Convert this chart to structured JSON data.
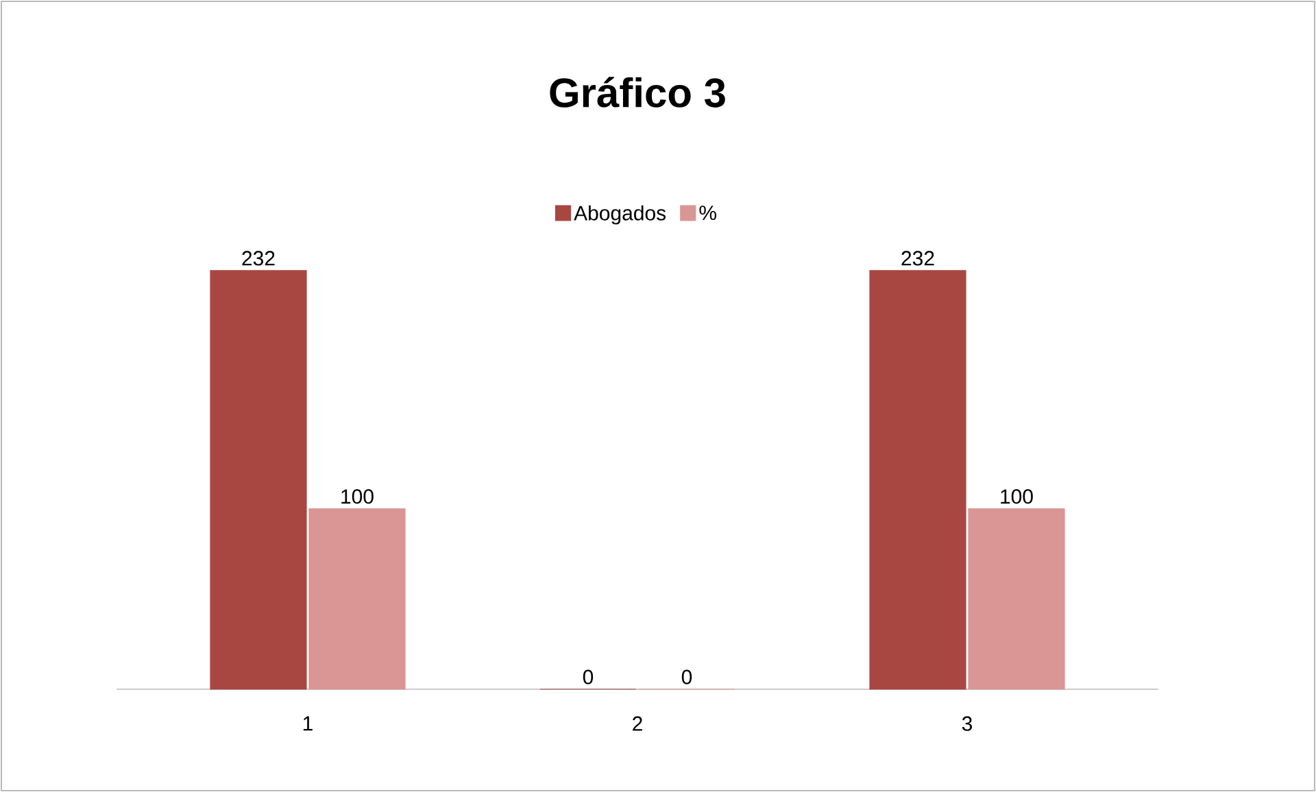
{
  "chart_data": {
    "type": "bar",
    "title": "**Gráfico 3**",
    "categories": [
      "1",
      "2",
      "3"
    ],
    "series": [
      {
        "name": "Abogados",
        "color": "#a84742",
        "values": [
          232,
          0,
          232
        ]
      },
      {
        "name": "%",
        "color": "#d99694",
        "values": [
          100,
          0,
          100
        ]
      }
    ],
    "data_labels": true,
    "legend": "top"
  }
}
